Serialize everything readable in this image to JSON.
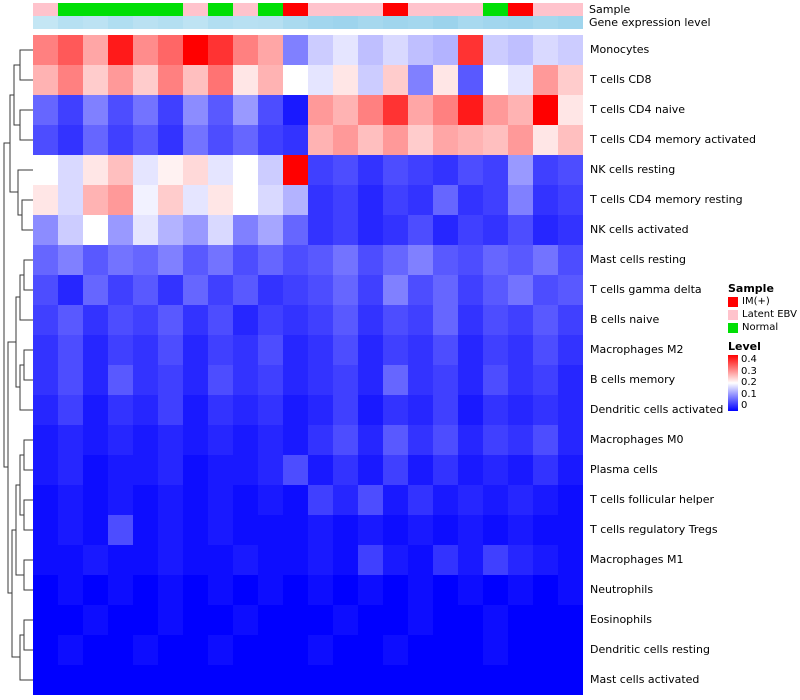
{
  "annotations": {
    "sample_label": "Sample",
    "gene_label": "Gene expression level"
  },
  "legend": {
    "sample": {
      "title": "Sample",
      "items": [
        {
          "label": "IM(+)",
          "color": "#FF0000"
        },
        {
          "label": "Latent EBV",
          "color": "#FFC3CC"
        },
        {
          "label": "Normal",
          "color": "#00DF05"
        }
      ]
    },
    "level": {
      "title": "Level",
      "ticks": [
        "0.4",
        "0.3",
        "0.2",
        "0.1",
        "0"
      ]
    }
  },
  "chart_data": {
    "type": "heatmap",
    "rows": [
      "Monocytes",
      "T cells CD8",
      "T cells CD4 naive",
      "T cells CD4 memory activated",
      "NK cells resting",
      "T cells CD4 memory resting",
      "NK cells activated",
      "Mast cells resting",
      "T cells gamma delta",
      "B cells naive",
      "Macrophages M2",
      "B cells memory",
      "Dendritic cells activated",
      "Macrophages M0",
      "Plasma cells",
      "T cells follicular helper",
      "T cells regulatory  Tregs",
      "Macrophages M1",
      "Neutrophils",
      "Eosinophils",
      "Dendritic cells resting",
      "Mast cells activated"
    ],
    "columns_count": 22,
    "value_range": [
      0,
      0.4
    ],
    "colormap": {
      "low": "#0000FF",
      "mid": "#FFFFFF",
      "high": "#FF0000",
      "midpoint": 0.2
    },
    "column_annotations": {
      "sample": [
        "Latent EBV",
        "Normal",
        "Normal",
        "Normal",
        "Normal",
        "Normal",
        "Latent EBV",
        "Normal",
        "Latent EBV",
        "Normal",
        "IM(+)",
        "Latent EBV",
        "Latent EBV",
        "Latent EBV",
        "IM(+)",
        "Latent EBV",
        "Latent EBV",
        "Latent EBV",
        "Normal",
        "IM(+)",
        "Latent EBV",
        "Latent EBV"
      ],
      "gene_expression_level_colors": [
        "#C4E6F4",
        "#B6E0F2",
        "#BCE2F3",
        "#B0DEF1",
        "#BAE1F2",
        "#B4DFF1",
        "#BEE3F3",
        "#B2DEF1",
        "#B8E0F2",
        "#B6DFF1",
        "#AADAEF",
        "#A2D6EE",
        "#9ED4ED",
        "#A6D8EE",
        "#A0D5ED",
        "#A4D7EE",
        "#9CD3EC",
        "#A8D9EF",
        "#A2D6EE",
        "#9ED4ED",
        "#A6D8EE",
        "#A0D5ED"
      ]
    },
    "values": [
      [
        0.3,
        0.33,
        0.27,
        0.38,
        0.29,
        0.32,
        0.4,
        0.36,
        0.3,
        0.27,
        0.1,
        0.16,
        0.18,
        0.15,
        0.17,
        0.15,
        0.14,
        0.36,
        0.16,
        0.15,
        0.17,
        0.16
      ],
      [
        0.26,
        0.3,
        0.24,
        0.28,
        0.24,
        0.3,
        0.25,
        0.31,
        0.22,
        0.26,
        0.2,
        0.18,
        0.22,
        0.16,
        0.24,
        0.1,
        0.22,
        0.07,
        0.2,
        0.18,
        0.28,
        0.24
      ],
      [
        0.08,
        0.05,
        0.1,
        0.06,
        0.09,
        0.05,
        0.11,
        0.07,
        0.12,
        0.06,
        0.02,
        0.28,
        0.26,
        0.3,
        0.36,
        0.27,
        0.3,
        0.38,
        0.28,
        0.26,
        0.4,
        0.22
      ],
      [
        0.06,
        0.04,
        0.08,
        0.05,
        0.07,
        0.04,
        0.09,
        0.06,
        0.08,
        0.05,
        0.04,
        0.26,
        0.28,
        0.25,
        0.28,
        0.24,
        0.27,
        0.26,
        0.25,
        0.28,
        0.22,
        0.25
      ],
      [
        0.2,
        0.17,
        0.22,
        0.25,
        0.18,
        0.21,
        0.23,
        0.18,
        0.2,
        0.16,
        0.4,
        0.05,
        0.06,
        0.04,
        0.06,
        0.05,
        0.04,
        0.06,
        0.05,
        0.12,
        0.05,
        0.06
      ],
      [
        0.22,
        0.17,
        0.26,
        0.28,
        0.19,
        0.24,
        0.18,
        0.22,
        0.2,
        0.17,
        0.14,
        0.04,
        0.05,
        0.03,
        0.05,
        0.04,
        0.08,
        0.04,
        0.05,
        0.1,
        0.04,
        0.05
      ],
      [
        0.11,
        0.16,
        0.2,
        0.12,
        0.18,
        0.14,
        0.12,
        0.17,
        0.1,
        0.13,
        0.08,
        0.04,
        0.05,
        0.03,
        0.04,
        0.06,
        0.03,
        0.05,
        0.04,
        0.06,
        0.03,
        0.04
      ],
      [
        0.08,
        0.1,
        0.07,
        0.09,
        0.08,
        0.1,
        0.07,
        0.09,
        0.06,
        0.08,
        0.06,
        0.07,
        0.09,
        0.06,
        0.08,
        0.1,
        0.07,
        0.06,
        0.08,
        0.07,
        0.09,
        0.06
      ],
      [
        0.06,
        0.03,
        0.08,
        0.05,
        0.07,
        0.04,
        0.08,
        0.05,
        0.07,
        0.04,
        0.05,
        0.06,
        0.08,
        0.05,
        0.1,
        0.06,
        0.08,
        0.05,
        0.07,
        0.09,
        0.06,
        0.07
      ],
      [
        0.05,
        0.07,
        0.04,
        0.06,
        0.05,
        0.07,
        0.04,
        0.06,
        0.03,
        0.05,
        0.04,
        0.05,
        0.07,
        0.04,
        0.06,
        0.05,
        0.08,
        0.04,
        0.06,
        0.05,
        0.07,
        0.05
      ],
      [
        0.04,
        0.06,
        0.03,
        0.05,
        0.04,
        0.06,
        0.03,
        0.05,
        0.04,
        0.06,
        0.03,
        0.04,
        0.06,
        0.03,
        0.05,
        0.04,
        0.06,
        0.03,
        0.05,
        0.04,
        0.06,
        0.04
      ],
      [
        0.04,
        0.06,
        0.03,
        0.07,
        0.04,
        0.05,
        0.03,
        0.06,
        0.04,
        0.05,
        0.03,
        0.04,
        0.05,
        0.03,
        0.08,
        0.04,
        0.05,
        0.03,
        0.06,
        0.04,
        0.05,
        0.03
      ],
      [
        0.03,
        0.05,
        0.02,
        0.04,
        0.03,
        0.05,
        0.02,
        0.04,
        0.03,
        0.04,
        0.02,
        0.03,
        0.05,
        0.02,
        0.04,
        0.03,
        0.05,
        0.02,
        0.04,
        0.03,
        0.04,
        0.03
      ],
      [
        0.02,
        0.03,
        0.02,
        0.03,
        0.02,
        0.03,
        0.02,
        0.03,
        0.02,
        0.03,
        0.02,
        0.04,
        0.06,
        0.03,
        0.07,
        0.04,
        0.06,
        0.03,
        0.05,
        0.04,
        0.06,
        0.03
      ],
      [
        0.02,
        0.03,
        0.01,
        0.02,
        0.02,
        0.03,
        0.01,
        0.02,
        0.02,
        0.03,
        0.06,
        0.02,
        0.04,
        0.02,
        0.05,
        0.02,
        0.04,
        0.02,
        0.03,
        0.02,
        0.04,
        0.02
      ],
      [
        0.01,
        0.02,
        0.01,
        0.02,
        0.01,
        0.02,
        0.01,
        0.02,
        0.01,
        0.02,
        0.01,
        0.05,
        0.03,
        0.06,
        0.02,
        0.04,
        0.02,
        0.03,
        0.02,
        0.03,
        0.02,
        0.01
      ],
      [
        0.01,
        0.02,
        0.01,
        0.06,
        0.01,
        0.02,
        0.01,
        0.02,
        0.01,
        0.01,
        0.01,
        0.02,
        0.01,
        0.02,
        0.01,
        0.02,
        0.01,
        0.02,
        0.01,
        0.02,
        0.01,
        0.01
      ],
      [
        0.01,
        0.01,
        0.02,
        0.01,
        0.01,
        0.02,
        0.01,
        0.01,
        0.02,
        0.01,
        0.01,
        0.02,
        0.01,
        0.05,
        0.02,
        0.01,
        0.04,
        0.02,
        0.05,
        0.03,
        0.02,
        0.01
      ],
      [
        0.0,
        0.01,
        0.0,
        0.01,
        0.0,
        0.01,
        0.0,
        0.01,
        0.0,
        0.01,
        0.0,
        0.01,
        0.0,
        0.01,
        0.0,
        0.01,
        0.0,
        0.01,
        0.0,
        0.01,
        0.0,
        0.01
      ],
      [
        0.0,
        0.0,
        0.01,
        0.0,
        0.0,
        0.01,
        0.0,
        0.0,
        0.01,
        0.0,
        0.0,
        0.0,
        0.01,
        0.0,
        0.0,
        0.01,
        0.0,
        0.0,
        0.01,
        0.0,
        0.0,
        0.0
      ],
      [
        0.0,
        0.01,
        0.0,
        0.0,
        0.01,
        0.0,
        0.0,
        0.01,
        0.0,
        0.0,
        0.0,
        0.01,
        0.0,
        0.0,
        0.01,
        0.0,
        0.0,
        0.0,
        0.01,
        0.0,
        0.0,
        0.0
      ],
      [
        0.0,
        0.0,
        0.0,
        0.0,
        0.0,
        0.0,
        0.0,
        0.0,
        0.0,
        0.0,
        0.0,
        0.0,
        0.0,
        0.0,
        0.0,
        0.0,
        0.0,
        0.0,
        0.0,
        0.0,
        0.0,
        0.0
      ]
    ]
  }
}
